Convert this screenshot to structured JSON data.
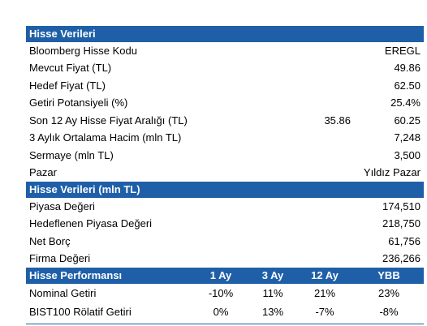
{
  "sections": [
    {
      "title": "Hisse Verileri",
      "rows": [
        [
          "Bloomberg Hisse Kodu",
          "EREGL"
        ],
        [
          "Mevcut Fiyat (TL)",
          "49.86"
        ],
        [
          "Hedef Fiyat (TL)",
          "62.50"
        ],
        [
          "Getiri Potansiyeli (%)",
          "25.4%"
        ],
        [
          "Son 12 Ay Hisse Fiyat Aralığı (TL)",
          "35.86",
          "60.25"
        ],
        [
          "3 Aylık Ortalama Hacim (mln TL)",
          "7,248"
        ],
        [
          "Sermaye (mln TL)",
          "3,500"
        ],
        [
          "Pazar",
          "Yıldız Pazar"
        ]
      ]
    },
    {
      "title": "Hisse Verileri (mln TL)",
      "rows": [
        [
          "Piyasa Değeri",
          "174,510"
        ],
        [
          "Hedeflenen Piyasa Değeri",
          "218,750"
        ],
        [
          "Net Borç",
          "61,756"
        ],
        [
          "Firma Değeri",
          "236,266"
        ]
      ]
    }
  ],
  "performance": {
    "header": [
      "Hisse Performansı",
      "1 Ay",
      "3 Ay",
      "12 Ay",
      "YBB"
    ],
    "rows": [
      [
        "Nominal Getiri",
        "-10%",
        "11%",
        "21%",
        "23%"
      ],
      [
        "BIST100 Rölatif Getiri",
        "0%",
        "13%",
        "-7%",
        "-8%"
      ]
    ]
  }
}
